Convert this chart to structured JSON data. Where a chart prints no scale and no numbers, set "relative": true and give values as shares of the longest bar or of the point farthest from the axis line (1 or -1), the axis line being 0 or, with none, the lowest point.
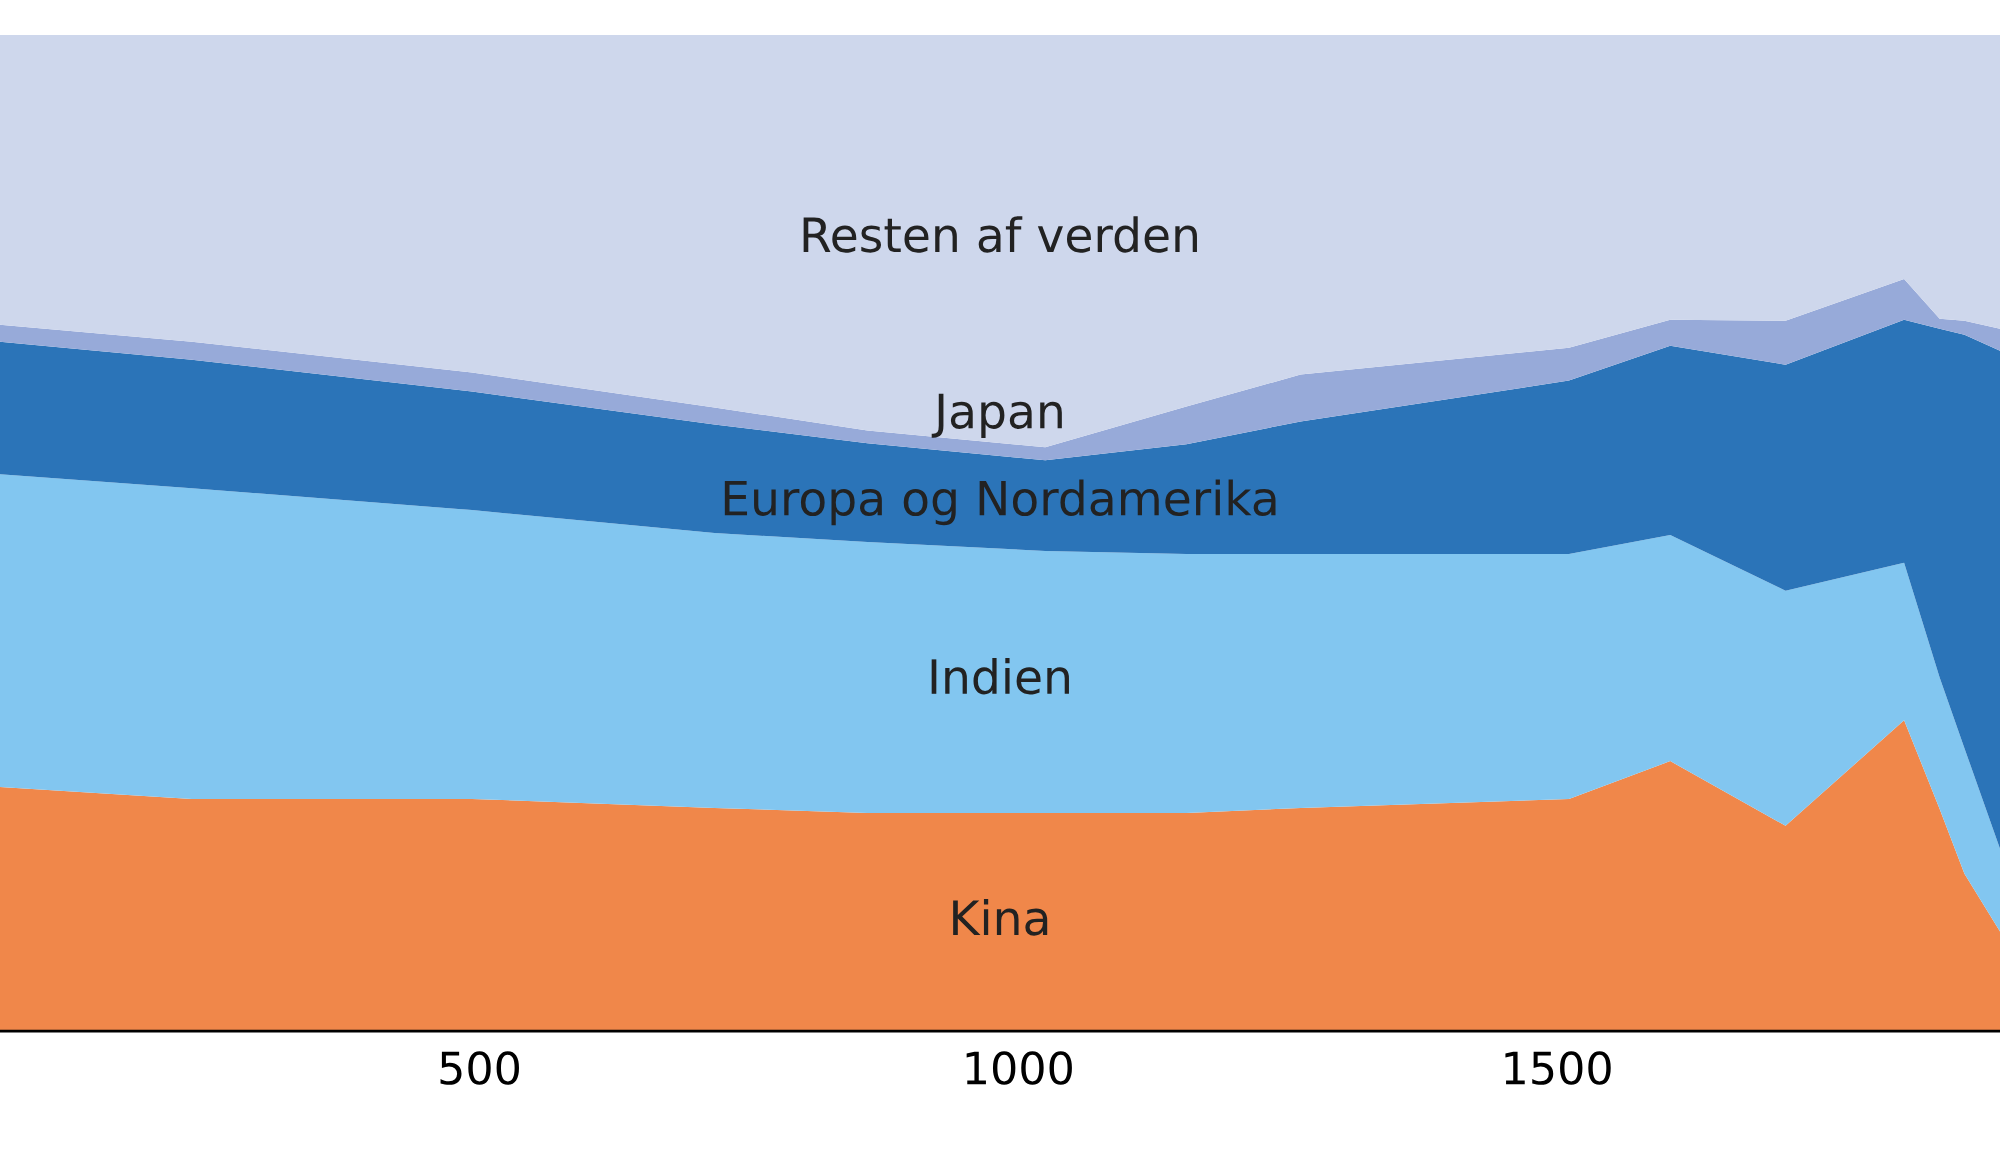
{
  "chart_data": {
    "type": "area",
    "stacked": true,
    "relative": true,
    "x": [
      55,
      233,
      493,
      718,
      860,
      1025,
      1156,
      1262,
      1511,
      1605,
      1712,
      1822,
      1855,
      1878,
      1911
    ],
    "xlim": [
      55,
      1911
    ],
    "xticks": [
      500,
      1000,
      1500
    ],
    "tick_labels": "x",
    "grid": false,
    "legend": false,
    "series": [
      {
        "name": "Kina",
        "color": "#f0874a",
        "values": [
          0.245,
          0.233,
          0.233,
          0.224,
          0.219,
          0.219,
          0.219,
          0.224,
          0.233,
          0.271,
          0.206,
          0.312,
          0.223,
          0.158,
          0.1
        ]
      },
      {
        "name": "Indien",
        "color": "#82c6f0",
        "values": [
          0.314,
          0.312,
          0.29,
          0.276,
          0.272,
          0.263,
          0.26,
          0.255,
          0.246,
          0.227,
          0.236,
          0.158,
          0.132,
          0.126,
          0.083
        ]
      },
      {
        "name": "Europa og Nordamerika",
        "color": "#2b74b8",
        "values": [
          0.133,
          0.129,
          0.119,
          0.109,
          0.099,
          0.091,
          0.11,
          0.133,
          0.174,
          0.19,
          0.227,
          0.244,
          0.35,
          0.415,
          0.5
        ]
      },
      {
        "name": "Japan",
        "color": "#97aad9",
        "values": [
          0.017,
          0.018,
          0.019,
          0.017,
          0.013,
          0.013,
          0.038,
          0.047,
          0.033,
          0.026,
          0.044,
          0.041,
          0.01,
          0.014,
          0.022
        ]
      },
      {
        "name": "Resten af verden",
        "color": "#ced7ec",
        "values": [
          0.291,
          0.308,
          0.339,
          0.374,
          0.397,
          0.414,
          0.373,
          0.341,
          0.314,
          0.286,
          0.287,
          0.245,
          0.285,
          0.287,
          0.295
        ]
      }
    ]
  }
}
